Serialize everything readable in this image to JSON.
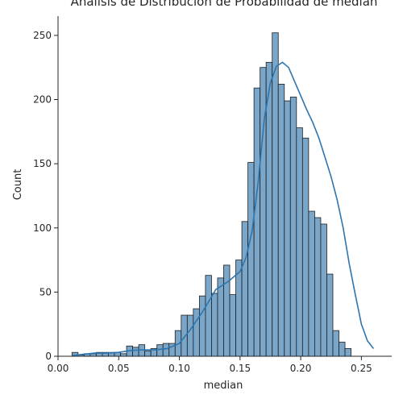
{
  "chart_data": {
    "type": "bar",
    "title": "Análisis de Distribución de Probabilidad de median",
    "xlabel": "median",
    "ylabel": "Count",
    "xlim": [
      0.0,
      0.275
    ],
    "ylim": [
      0,
      265
    ],
    "xticks": [
      0.0,
      0.05,
      0.1,
      0.15,
      0.2,
      0.25
    ],
    "xtick_labels": [
      "0.00",
      "0.05",
      "0.10",
      "0.15",
      "0.20",
      "0.25"
    ],
    "yticks": [
      0,
      50,
      100,
      150,
      200,
      250
    ],
    "ytick_labels": [
      "0",
      "50",
      "100",
      "150",
      "200",
      "250"
    ],
    "grid": false,
    "bar_color": "#7aa6c9",
    "kde_color": "#2c75b0",
    "bin_start": 0.0115,
    "bin_width": 0.005,
    "values": [
      3,
      1,
      2,
      2,
      3,
      3,
      3,
      3,
      2,
      8,
      7,
      9,
      4,
      6,
      9,
      10,
      10,
      20,
      32,
      32,
      37,
      47,
      63,
      49,
      61,
      71,
      48,
      75,
      105,
      151,
      209,
      225,
      229,
      252,
      212,
      199,
      202,
      178,
      170,
      113,
      108,
      103,
      64,
      20,
      11,
      6
    ],
    "kde_x": [
      0.012,
      0.02,
      0.03,
      0.04,
      0.05,
      0.06,
      0.07,
      0.08,
      0.09,
      0.1,
      0.11,
      0.12,
      0.13,
      0.14,
      0.15,
      0.155,
      0.16,
      0.165,
      0.17,
      0.175,
      0.18,
      0.185,
      0.19,
      0.195,
      0.2,
      0.205,
      0.21,
      0.215,
      0.22,
      0.225,
      0.23,
      0.235,
      0.24,
      0.245,
      0.25,
      0.255,
      0.26
    ],
    "kde_y": [
      0.5,
      1.5,
      2.5,
      2.5,
      3,
      4.5,
      5,
      5,
      6,
      10,
      22,
      36,
      52,
      58,
      66,
      77,
      98,
      136,
      185,
      213,
      226,
      229,
      225,
      214,
      203,
      192,
      182,
      170,
      155,
      140,
      122,
      100,
      72,
      48,
      25,
      12,
      6
    ]
  }
}
